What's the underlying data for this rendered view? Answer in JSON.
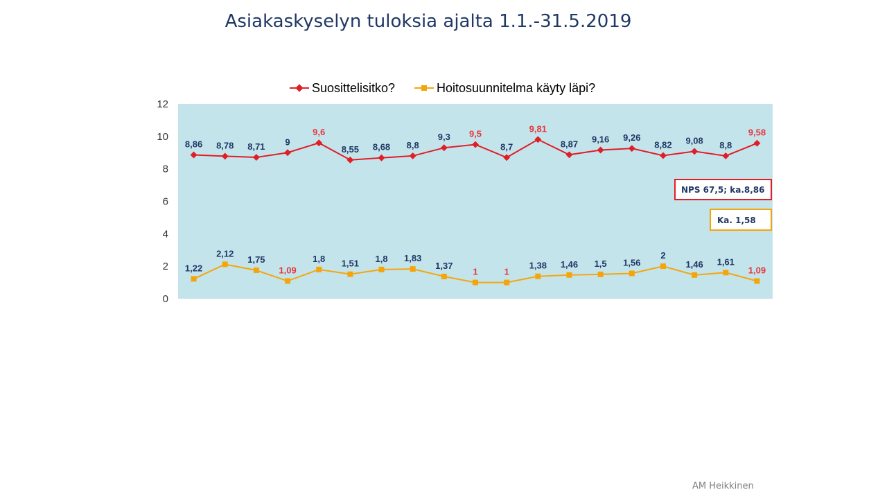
{
  "title": "Asiakaskyselyn tuloksia ajalta 1.1.-31.5.2019",
  "footer": "AM Heikkinen",
  "colors": {
    "plot_background": "#c4e4ec",
    "series1": "#e01e26",
    "series2": "#f5a50c",
    "label_default": "#1f3864",
    "label_highlight": "#e8363b"
  },
  "chart_data": {
    "type": "line",
    "ylim": [
      0,
      12
    ],
    "yticks": [
      0,
      2,
      4,
      6,
      8,
      10,
      12
    ],
    "grid": false,
    "legend_position": "top",
    "x": [
      1,
      2,
      3,
      4,
      5,
      6,
      7,
      8,
      9,
      10,
      11,
      12,
      13,
      14,
      15,
      16,
      17,
      18,
      19
    ],
    "series": [
      {
        "name": "Suosittelisitko?",
        "marker": "diamond",
        "values": [
          8.86,
          8.78,
          8.71,
          9,
          9.6,
          8.55,
          8.68,
          8.8,
          9.3,
          9.5,
          8.7,
          9.81,
          8.87,
          9.16,
          9.26,
          8.82,
          9.08,
          8.8,
          9.58
        ],
        "labels": [
          "8,86",
          "8,78",
          "8,71",
          "9",
          "9,6",
          "8,55",
          "8,68",
          "8,8",
          "9,3",
          "9,5",
          "8,7",
          "9,81",
          "8,87",
          "9,16",
          "9,26",
          "8,82",
          "9,08",
          "8,8",
          "9,58"
        ],
        "highlighted": [
          false,
          false,
          false,
          false,
          true,
          false,
          false,
          false,
          false,
          true,
          false,
          true,
          false,
          false,
          false,
          false,
          false,
          false,
          true
        ]
      },
      {
        "name": "Hoitosuunnitelma käyty läpi?",
        "marker": "square",
        "values": [
          1.22,
          2.12,
          1.75,
          1.09,
          1.8,
          1.51,
          1.8,
          1.83,
          1.37,
          1,
          1,
          1.38,
          1.46,
          1.5,
          1.56,
          2,
          1.46,
          1.61,
          1.09
        ],
        "labels": [
          "1,22",
          "2,12",
          "1,75",
          "1,09",
          "1,8",
          "1,51",
          "1,8",
          "1,83",
          "1,37",
          "1",
          "1",
          "1,38",
          "1,46",
          "1,5",
          "1,56",
          "2",
          "1,46",
          "1,61",
          "1,09"
        ],
        "highlighted": [
          false,
          false,
          false,
          true,
          false,
          false,
          false,
          false,
          false,
          true,
          true,
          false,
          false,
          false,
          false,
          false,
          false,
          false,
          true
        ]
      }
    ],
    "annotations": [
      {
        "text": "NPS 67,5; ka.8,86",
        "border_color": "#e01e26"
      },
      {
        "text": "Ka. 1,58",
        "border_color": "#f5a50c"
      }
    ]
  }
}
